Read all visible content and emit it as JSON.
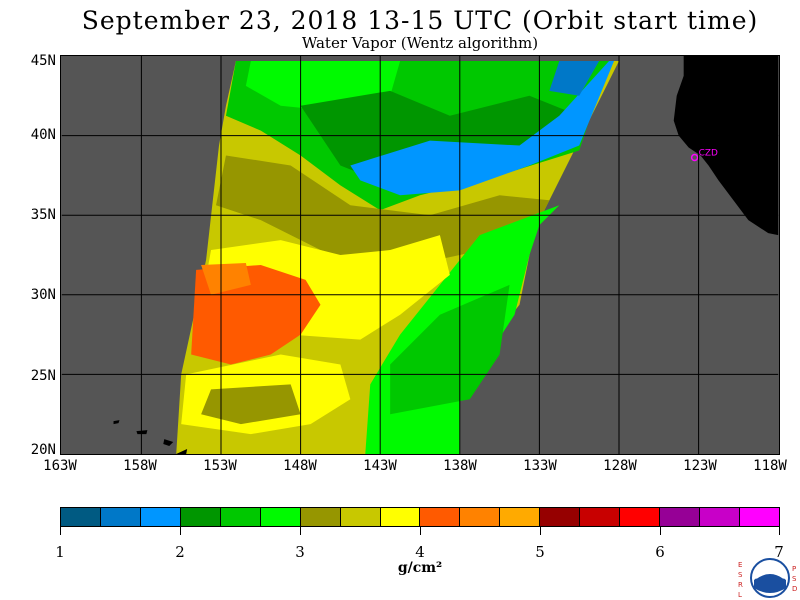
{
  "title": "September 23, 2018  13-15 UTC  (Orbit start time)",
  "subtitle": "Water Vapor (Wentz algorithm)",
  "map": {
    "lat_labels": [
      "45N",
      "40N",
      "35N",
      "30N",
      "25N",
      "20N"
    ],
    "lon_labels": [
      "163W",
      "158W",
      "153W",
      "148W",
      "143W",
      "138W",
      "133W",
      "128W",
      "123W",
      "118W"
    ],
    "station_label": "CZD",
    "colors": {
      "background": "#555555",
      "land": "#000000",
      "gridline": "#000000",
      "station": "#ff00ff"
    }
  },
  "colorbar": {
    "colors": [
      "#005a82",
      "#0078c8",
      "#0096ff",
      "#009600",
      "#00c800",
      "#00fa00",
      "#969600",
      "#c8c800",
      "#ffff00",
      "#ff5a00",
      "#ff8200",
      "#ffaa00",
      "#960000",
      "#c80000",
      "#ff0000",
      "#960096",
      "#c800c8",
      "#ff00ff"
    ],
    "labels": [
      "1",
      "2",
      "3",
      "4",
      "5",
      "6",
      "7"
    ],
    "units": "g/cm²"
  },
  "logo": {
    "left_letters": "ESRL",
    "right_letters": "PSD",
    "center_text": "NOAA"
  }
}
